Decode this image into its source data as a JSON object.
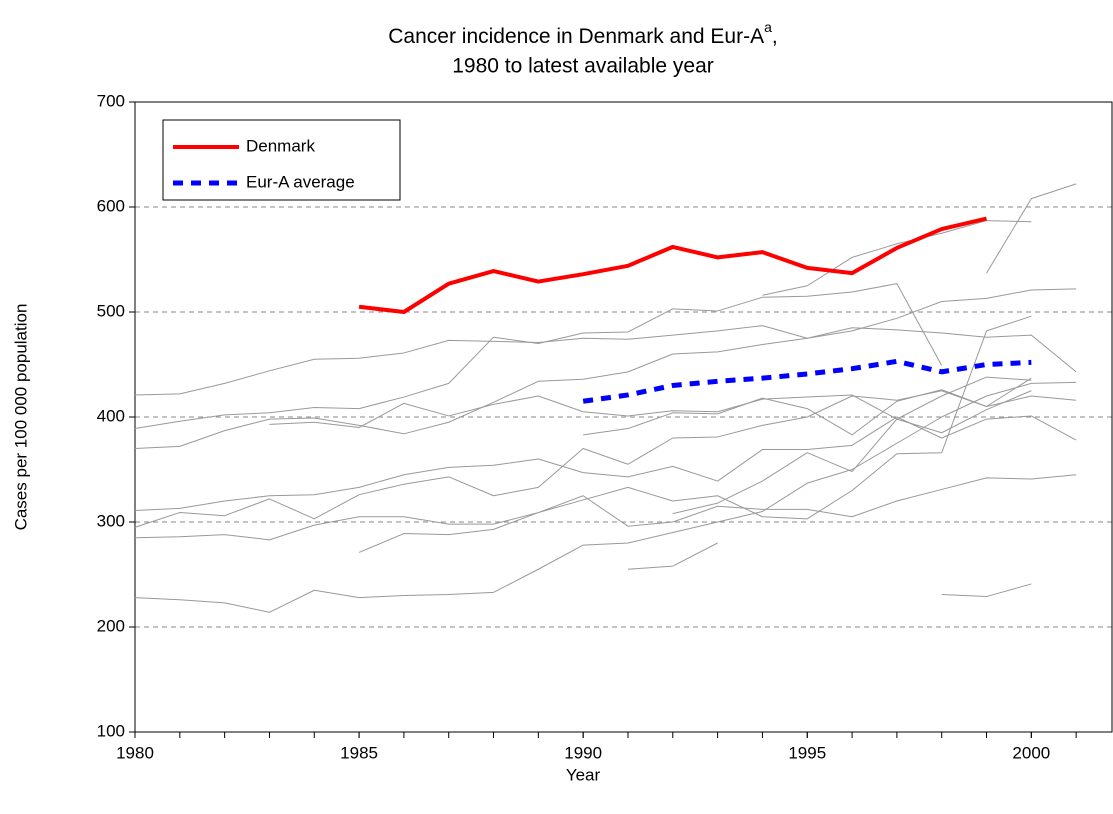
{
  "chart_data": {
    "type": "line",
    "title": "Cancer incidence in Denmark and Eur-A",
    "title_superscript": "a",
    "title_suffix": ",",
    "subtitle": "1980 to latest available year",
    "x_label": "Year",
    "y_label": "Cases per 100 000 population",
    "x": [
      1980,
      1981,
      1982,
      1983,
      1984,
      1985,
      1986,
      1987,
      1988,
      1989,
      1990,
      1991,
      1992,
      1993,
      1994,
      1995,
      1996,
      1997,
      1998,
      1999,
      2000,
      2001
    ],
    "xlim": [
      1980,
      2001.8
    ],
    "xticks": [
      1980,
      1985,
      1990,
      1995,
      2000
    ],
    "ylim": [
      100,
      700
    ],
    "yticks": [
      100,
      200,
      300,
      400,
      500,
      600,
      700
    ],
    "grid": true,
    "legend": "upper left",
    "series": [
      {
        "color": "#999999",
        "values": [
          421,
          422,
          432,
          444,
          455,
          456,
          461,
          473,
          472,
          471,
          475,
          474,
          478,
          482,
          487,
          475,
          485,
          483,
          480,
          476,
          478,
          443
        ]
      },
      {
        "color": "#999999",
        "values": [
          389,
          396,
          402,
          404,
          409,
          408,
          419,
          432,
          476,
          470,
          480,
          481,
          503,
          501,
          514,
          515,
          519,
          527,
          449,
          null,
          null,
          null
        ]
      },
      {
        "color": "#999999",
        "values": [
          370,
          372,
          387,
          398,
          399,
          392,
          384,
          395,
          414,
          434,
          436,
          443,
          460,
          462,
          469,
          475,
          482,
          494,
          510,
          513,
          521,
          522
        ]
      },
      {
        "color": "#999999",
        "values": [
          311,
          313,
          320,
          325,
          326,
          333,
          345,
          352,
          354,
          360,
          347,
          343,
          353,
          339,
          369,
          369,
          373,
          400,
          380,
          398,
          401,
          378
        ]
      },
      {
        "color": "#999999",
        "values": [
          295,
          309,
          306,
          322,
          303,
          326,
          336,
          343,
          325,
          333,
          370,
          355,
          380,
          381,
          392,
          400,
          420,
          416,
          425,
          410,
          420,
          416
        ]
      },
      {
        "color": "#999999",
        "values": [
          285,
          286,
          288,
          283,
          297,
          305,
          305,
          298,
          298,
          309,
          325,
          296,
          300,
          315,
          312,
          312,
          305,
          320,
          331,
          342,
          341,
          345
        ]
      },
      {
        "color": "#999999",
        "values": [
          228,
          226,
          223,
          214,
          235,
          228,
          230,
          231,
          233,
          255,
          278,
          280,
          290,
          300,
          310,
          337,
          350,
          375,
          400,
          420,
          432,
          433
        ]
      },
      {
        "color": "#999999",
        "values": [
          null,
          null,
          null,
          null,
          null,
          271,
          289,
          288,
          293,
          309,
          321,
          333,
          320,
          325,
          305,
          303,
          330,
          365,
          366,
          482,
          496,
          null
        ]
      },
      {
        "color": "#999999",
        "values": [
          null,
          null,
          null,
          393,
          395,
          390,
          413,
          401,
          412,
          420,
          405,
          401,
          406,
          405,
          417,
          419,
          421,
          398,
          420,
          438,
          435,
          null
        ]
      },
      {
        "color": "#999999",
        "values": [
          null,
          null,
          null,
          null,
          null,
          null,
          null,
          null,
          null,
          null,
          383,
          389,
          404,
          403,
          418,
          408,
          383,
          415,
          426,
          410,
          437,
          null
        ]
      },
      {
        "color": "#999999",
        "values": [
          null,
          null,
          null,
          null,
          null,
          null,
          null,
          null,
          null,
          null,
          null,
          255,
          258,
          280,
          null,
          null,
          null,
          null,
          null,
          null,
          null,
          null
        ]
      },
      {
        "color": "#999999",
        "values": [
          null,
          null,
          null,
          null,
          null,
          null,
          null,
          null,
          null,
          null,
          null,
          null,
          null,
          null,
          null,
          null,
          null,
          null,
          231,
          229,
          241,
          null
        ]
      },
      {
        "color": "#999999",
        "values": [
          null,
          null,
          null,
          null,
          null,
          null,
          null,
          null,
          null,
          null,
          null,
          null,
          null,
          null,
          516,
          525,
          552,
          565,
          575,
          587,
          586,
          null
        ]
      },
      {
        "color": "#999999",
        "values": [
          null,
          null,
          null,
          null,
          null,
          null,
          null,
          null,
          null,
          null,
          null,
          null,
          null,
          null,
          null,
          null,
          null,
          null,
          null,
          537,
          608,
          622
        ]
      },
      {
        "color": "#999999",
        "values": [
          null,
          null,
          null,
          null,
          null,
          null,
          null,
          null,
          null,
          null,
          null,
          null,
          308,
          318,
          339,
          366,
          348,
          398,
          385,
          407,
          425,
          null
        ]
      },
      {
        "name": "Denmark",
        "color": "#ff0000",
        "values": [
          null,
          null,
          null,
          null,
          null,
          505,
          500,
          527,
          539,
          529,
          536,
          544,
          562,
          552,
          557,
          542,
          537,
          561,
          579,
          589,
          null,
          null
        ]
      },
      {
        "name": "Eur-A average",
        "color": "#0000ff",
        "dashed": true,
        "values": [
          null,
          null,
          null,
          null,
          null,
          null,
          null,
          null,
          null,
          null,
          415,
          421,
          430,
          434,
          437,
          441,
          446,
          453,
          443,
          450,
          452,
          null
        ]
      }
    ]
  }
}
